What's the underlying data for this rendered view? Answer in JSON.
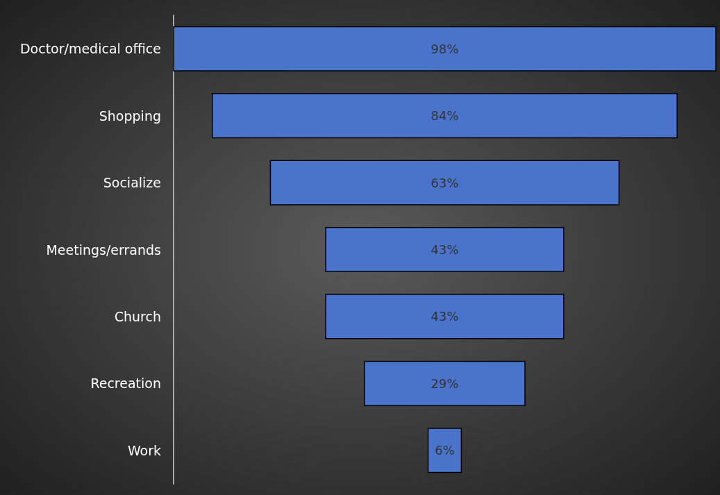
{
  "chart_data": {
    "type": "other",
    "categories": [
      "Doctor/medical office",
      "Shopping",
      "Socialize",
      "Meetings/errands",
      "Church",
      "Recreation",
      "Work"
    ],
    "values": [
      98,
      84,
      63,
      43,
      43,
      29,
      6
    ],
    "value_labels": [
      "98%",
      "84%",
      "63%",
      "43%",
      "43%",
      "29%",
      "6%"
    ],
    "color": "#4a74cc"
  }
}
